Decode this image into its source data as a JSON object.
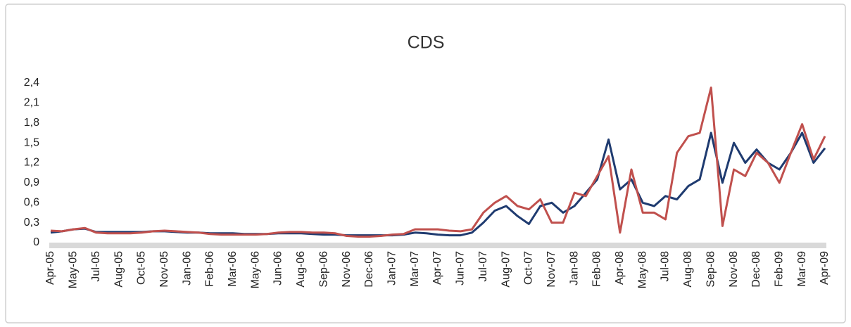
{
  "chart_data": {
    "type": "line",
    "title": "CDS",
    "categories": [
      "Apr-05",
      null,
      "May-05",
      null,
      "Jul-05",
      null,
      "Aug-05",
      null,
      "Oct-05",
      null,
      "Nov-05",
      null,
      "Jan-06",
      null,
      "Feb-06",
      null,
      "Mar-06",
      null,
      "May-06",
      null,
      "Jun-06",
      null,
      "Aug-06",
      null,
      "Sep-06",
      null,
      "Nov-06",
      null,
      "Dec-06",
      null,
      "Jan-07",
      null,
      "Mar-07",
      null,
      "Apr-07",
      null,
      "Jun-07",
      null,
      "Jul-07",
      null,
      "Aug-07",
      null,
      "Oct-07",
      null,
      "Nov-07",
      null,
      "Jan-08",
      null,
      "Feb-08",
      null,
      "Apr-08",
      null,
      "May-08",
      null,
      "Jul-08",
      null,
      "Aug-08",
      null,
      "Sep-08",
      null,
      "Nov-08",
      null,
      "Dec-08",
      null,
      "Feb-09",
      null,
      "Mar-09",
      null,
      "Apr-09"
    ],
    "series": [
      {
        "color": "#1f3b70",
        "values": [
          0.15,
          0.17,
          0.2,
          0.21,
          0.16,
          0.16,
          0.16,
          0.16,
          0.16,
          0.17,
          0.17,
          0.16,
          0.15,
          0.15,
          0.14,
          0.14,
          0.14,
          0.13,
          0.13,
          0.13,
          0.14,
          0.14,
          0.14,
          0.13,
          0.12,
          0.12,
          0.11,
          0.11,
          0.11,
          0.11,
          0.11,
          0.12,
          0.15,
          0.14,
          0.12,
          0.11,
          0.11,
          0.15,
          0.3,
          0.48,
          0.55,
          0.4,
          0.28,
          0.55,
          0.6,
          0.45,
          0.55,
          0.75,
          0.95,
          1.55,
          0.8,
          0.95,
          0.6,
          0.55,
          0.7,
          0.65,
          0.85,
          0.95,
          1.65,
          0.9,
          1.5,
          1.2,
          1.4,
          1.2,
          1.1,
          1.35,
          1.65,
          1.2,
          1.42
        ]
      },
      {
        "color": "#c0504d",
        "values": [
          0.18,
          0.17,
          0.2,
          0.22,
          0.15,
          0.14,
          0.14,
          0.14,
          0.15,
          0.17,
          0.18,
          0.17,
          0.16,
          0.15,
          0.13,
          0.12,
          0.12,
          0.12,
          0.12,
          0.13,
          0.15,
          0.16,
          0.16,
          0.15,
          0.15,
          0.14,
          0.1,
          0.09,
          0.09,
          0.1,
          0.12,
          0.13,
          0.2,
          0.2,
          0.2,
          0.18,
          0.17,
          0.2,
          0.45,
          0.6,
          0.7,
          0.55,
          0.5,
          0.65,
          0.3,
          0.3,
          0.75,
          0.7,
          1.0,
          1.3,
          0.15,
          1.1,
          0.45,
          0.45,
          0.35,
          1.35,
          1.6,
          1.65,
          2.33,
          0.25,
          1.1,
          1.0,
          1.35,
          1.2,
          0.9,
          1.35,
          1.78,
          1.25,
          1.6
        ]
      }
    ],
    "ylim": [
      0,
      2.4
    ],
    "yticks": [
      0,
      {
        "value": 0.3,
        "label": "0,3"
      },
      {
        "value": 0.6,
        "label": "0,6"
      },
      {
        "value": 0.9,
        "label": "0,9"
      },
      {
        "value": 1.2,
        "label": "1,2"
      },
      {
        "value": 1.5,
        "label": "1,5"
      },
      {
        "value": 1.8,
        "label": "1,8"
      },
      {
        "value": 2.1,
        "label": "2,1"
      },
      {
        "value": 2.4,
        "label": "2,4"
      }
    ]
  }
}
